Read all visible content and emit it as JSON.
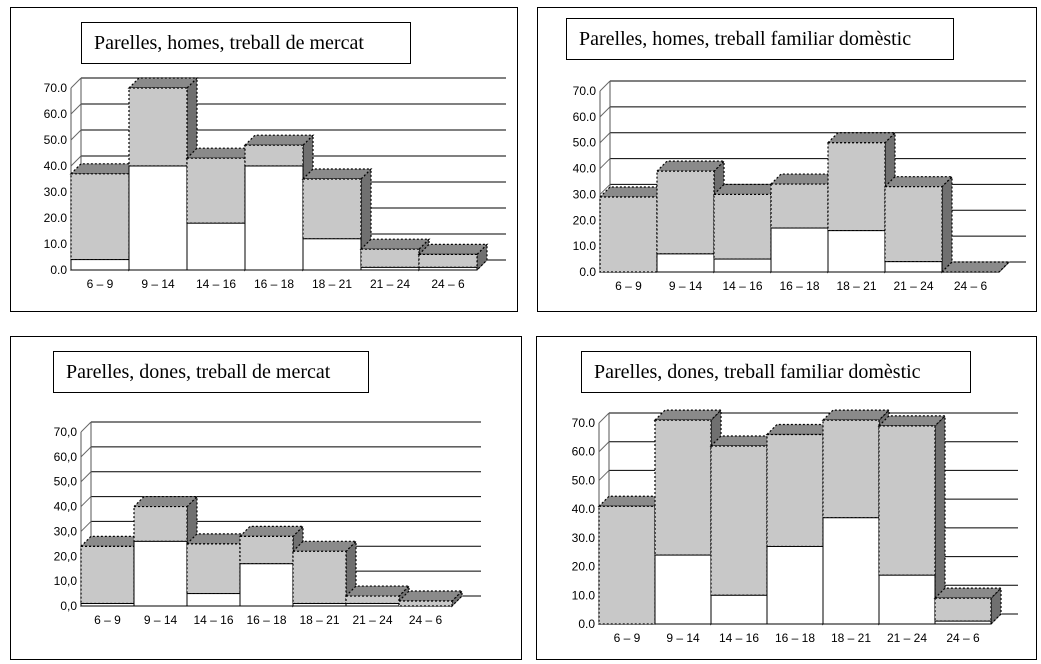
{
  "chart_data": [
    {
      "type": "bar",
      "title": "Parelles, homes, treball de mercat",
      "categories": [
        "6 – 9",
        "9 – 14",
        "14 – 16",
        "16 – 18",
        "18 – 21",
        "21 – 24",
        "24 – 6"
      ],
      "y_ticks": [
        "0.0",
        "10.0",
        "20.0",
        "30.0",
        "40.0",
        "50.0",
        "60.0",
        "70.0"
      ],
      "ylim": [
        0,
        70
      ],
      "series": [
        {
          "values": [
            4,
            40,
            18,
            40,
            12,
            1,
            1
          ]
        },
        {
          "values": [
            37,
            70,
            43,
            48,
            35,
            8,
            6
          ]
        }
      ]
    },
    {
      "type": "bar",
      "title": "Parelles, homes, treball familiar domèstic",
      "categories": [
        "6 – 9",
        "9 – 14",
        "14 – 16",
        "16 – 18",
        "18 – 21",
        "21 – 24",
        "24 – 6"
      ],
      "y_ticks": [
        "0.0",
        "10.0",
        "20.0",
        "30.0",
        "40.0",
        "50.0",
        "60.0",
        "70.0"
      ],
      "ylim": [
        0,
        70
      ],
      "series": [
        {
          "values": [
            0,
            7,
            5,
            17,
            16,
            4,
            0
          ]
        },
        {
          "values": [
            29,
            39,
            30,
            34,
            50,
            33,
            0
          ]
        }
      ]
    },
    {
      "type": "bar",
      "title": "Parelles, dones, treball de mercat",
      "categories": [
        "6 – 9",
        "9 – 14",
        "14 – 16",
        "16 – 18",
        "18 – 21",
        "21 – 24",
        "24 – 6"
      ],
      "y_ticks": [
        "0,0",
        "10,0",
        "20,0",
        "30,0",
        "40,0",
        "50,0",
        "60,0",
        "70,0"
      ],
      "ylim": [
        0,
        70
      ],
      "series": [
        {
          "values": [
            1,
            26,
            5,
            17,
            1,
            1,
            0
          ]
        },
        {
          "values": [
            24,
            40,
            25,
            28,
            22,
            4,
            2
          ]
        }
      ]
    },
    {
      "type": "bar",
      "title": "Parelles, dones, treball familiar domèstic",
      "categories": [
        "6 – 9",
        "9 – 14",
        "14 – 16",
        "16 – 18",
        "18 – 21",
        "21 – 24",
        "24 – 6"
      ],
      "y_ticks": [
        "0.0",
        "10.0",
        "20.0",
        "30.0",
        "40.0",
        "50.0",
        "60.0",
        "70.0"
      ],
      "ylim": [
        0,
        70
      ],
      "series": [
        {
          "values": [
            0,
            24,
            10,
            27,
            37,
            17,
            1
          ]
        },
        {
          "values": [
            41,
            71,
            62,
            66,
            71,
            69,
            9
          ]
        }
      ]
    }
  ]
}
